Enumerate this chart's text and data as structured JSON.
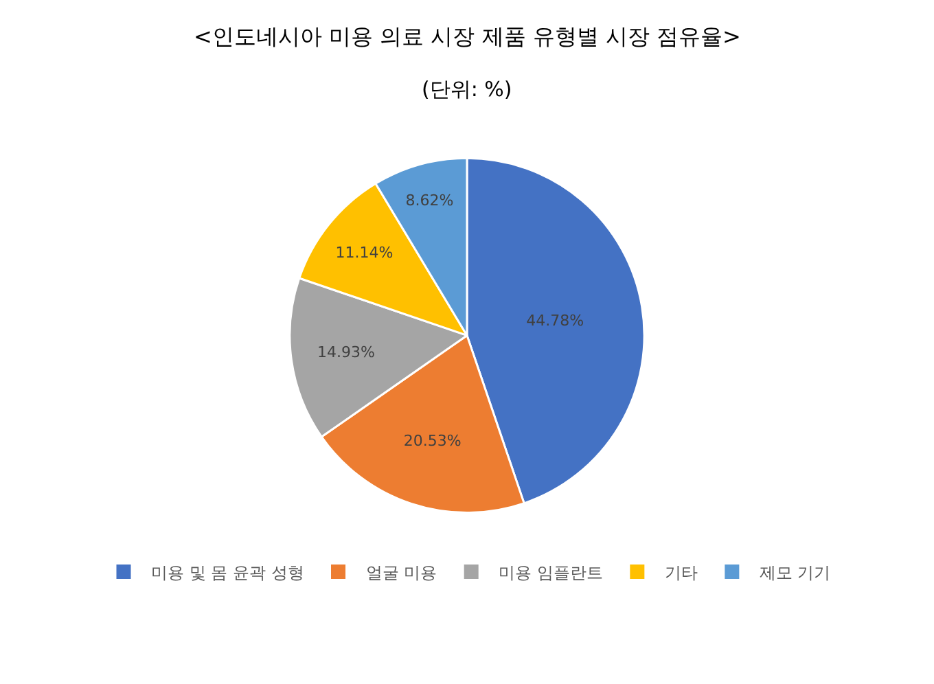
{
  "chart_data": {
    "type": "pie",
    "title": "<인도네시아 미용 의료 시장 제품 유형별 시장 점유율>",
    "subtitle": "(단위: %)",
    "categories": [
      "미용 및 몸 윤곽 성형",
      "얼굴 미용",
      "미용 임플란트",
      "기타",
      "제모 기기"
    ],
    "values": [
      44.78,
      20.53,
      14.93,
      11.14,
      8.62
    ],
    "colors": [
      "#4472c4",
      "#ed7d31",
      "#a5a5a5",
      "#ffc000",
      "#5b9bd5"
    ],
    "value_labels": [
      "44.78%",
      "20.53%",
      "14.93%",
      "11.14%",
      "8.62%"
    ],
    "legend": "bottom"
  }
}
